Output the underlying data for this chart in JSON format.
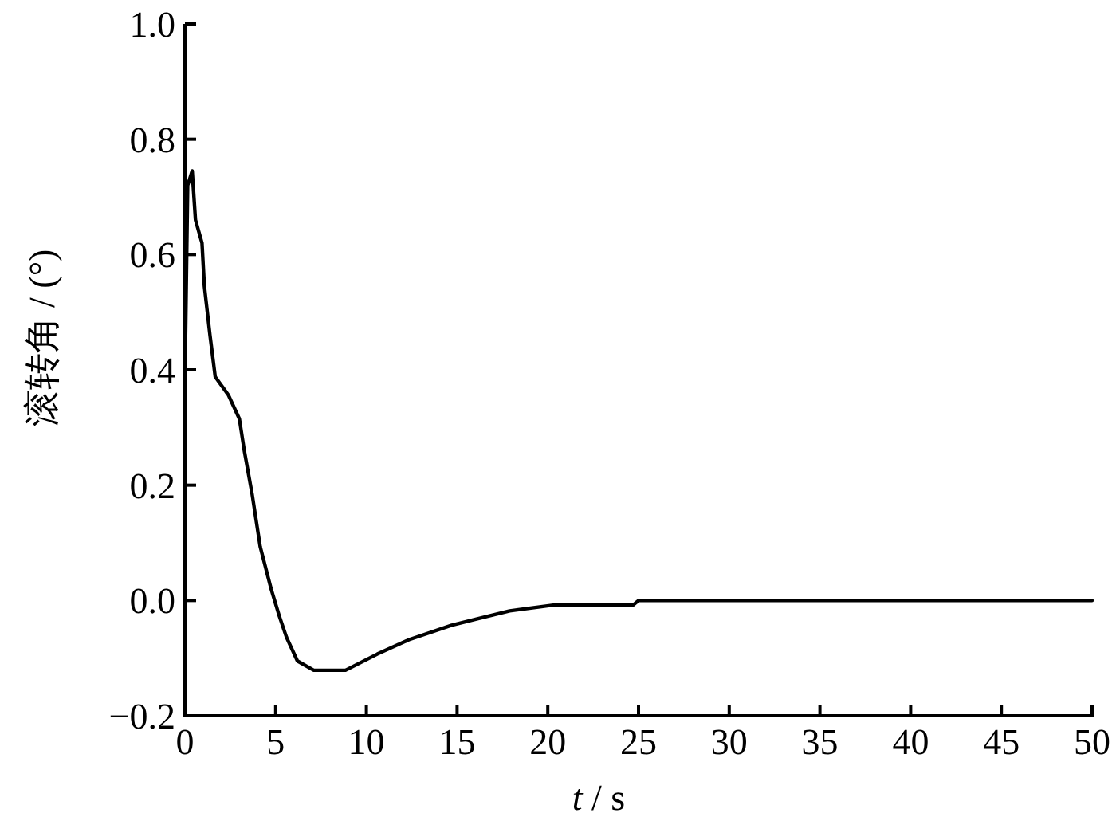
{
  "chart_data": {
    "type": "line",
    "xlabel": "*t* / s",
    "ylabel": "滚转角 / (°)",
    "x": [
      0,
      0.15,
      0.4,
      0.58,
      0.94,
      1.07,
      1.38,
      1.67,
      2.4,
      3.0,
      3.27,
      3.7,
      4.15,
      4.75,
      5.2,
      5.6,
      6.2,
      7.1,
      8.85,
      10.6,
      12.35,
      14.7,
      16.2,
      17.9,
      20.3,
      24.7,
      25,
      50
    ],
    "values": [
      0.38,
      0.72,
      0.745,
      0.66,
      0.62,
      0.545,
      0.46,
      0.388,
      0.356,
      0.315,
      0.26,
      0.185,
      0.093,
      0.02,
      -0.027,
      -0.064,
      -0.105,
      -0.121,
      -0.121,
      -0.093,
      -0.068,
      -0.043,
      -0.031,
      -0.018,
      -0.008,
      -0.008,
      0,
      0
    ],
    "color": "#000000",
    "xlim": [
      0,
      50
    ],
    "ylim": [
      -0.2,
      1.0
    ],
    "xticks": [
      0,
      5,
      10,
      15,
      20,
      25,
      30,
      35,
      40,
      45,
      50
    ],
    "yticks": [
      {
        "value": -0.2,
        "label": "−0.2"
      },
      {
        "value": 0,
        "label": "0.0"
      },
      {
        "value": 0.2,
        "label": "0.2"
      },
      {
        "value": 0.4,
        "label": "0.4"
      },
      {
        "value": 0.6,
        "label": "0.6"
      },
      {
        "value": 0.8,
        "label": "0.8"
      },
      {
        "value": 1.0,
        "label": "1.0"
      }
    ],
    "grid": false,
    "marker": "none",
    "line_style": "solid"
  }
}
